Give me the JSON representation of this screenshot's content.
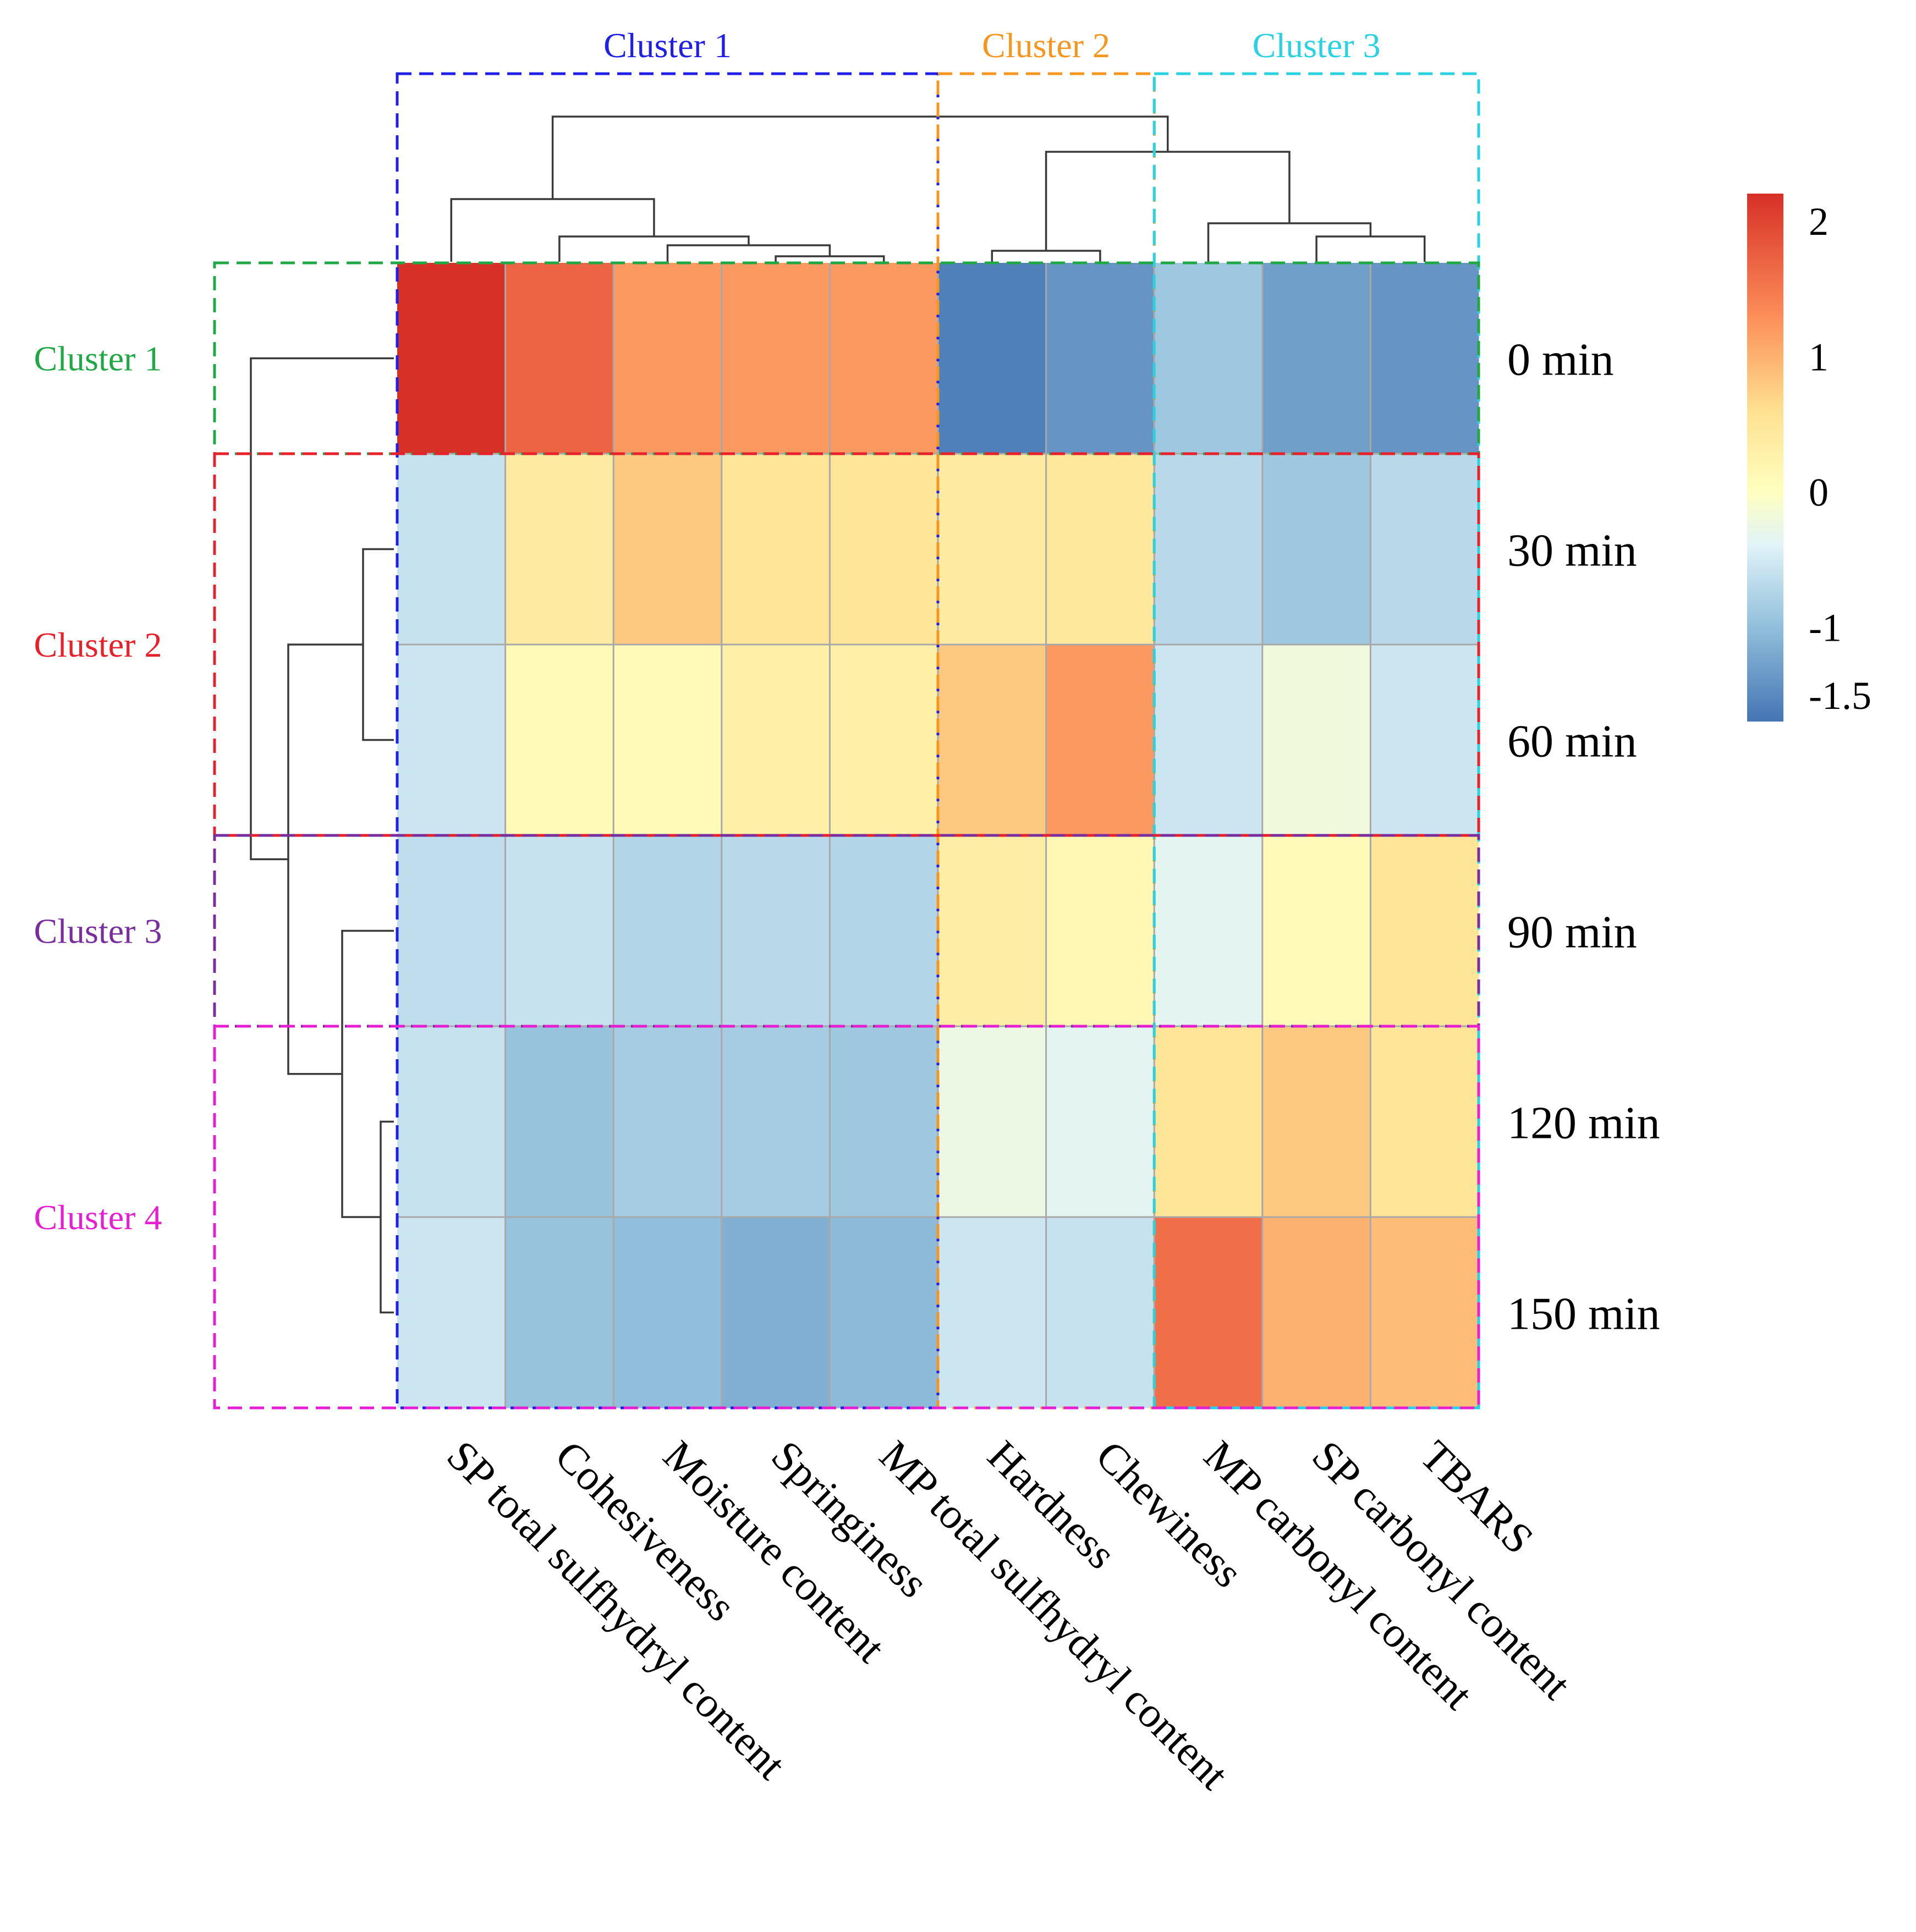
{
  "chart_data": {
    "type": "heatmap",
    "title": "",
    "rows": [
      "0 min",
      "30 min",
      "60 min",
      "90 min",
      "120 min",
      "150 min"
    ],
    "columns": [
      "SP total sulfhydryl content",
      "Cohesiveness",
      "Moisture content",
      "Springiness",
      "MP total sulfhydryl content",
      "Hardness",
      "Chewiness",
      "MP carbonyl content",
      "SP carbonyl content",
      "TBARS"
    ],
    "values": [
      [
        2.2,
        1.7,
        1.2,
        1.2,
        1.2,
        -1.6,
        -1.4,
        -0.9,
        -1.3,
        -1.4
      ],
      [
        -0.6,
        0.4,
        0.8,
        0.5,
        0.5,
        0.4,
        0.45,
        -0.7,
        -0.9,
        -0.7
      ],
      [
        -0.55,
        0.1,
        0.1,
        0.3,
        0.3,
        0.8,
        1.2,
        -0.55,
        -0.2,
        -0.55
      ],
      [
        -0.65,
        -0.6,
        -0.75,
        -0.7,
        -0.75,
        0.35,
        0.15,
        -0.35,
        0.1,
        0.5
      ],
      [
        -0.6,
        -0.95,
        -0.85,
        -0.85,
        -0.9,
        -0.25,
        -0.35,
        0.5,
        0.8,
        0.5
      ],
      [
        -0.55,
        -0.95,
        -1.0,
        -1.15,
        -1.05,
        -0.55,
        -0.6,
        1.6,
        1.0,
        0.9
      ]
    ],
    "color_scale": {
      "min": -1.7,
      "max": 2.2,
      "ticks": [
        {
          "label": "2",
          "value": 2
        },
        {
          "label": "1",
          "value": 1
        },
        {
          "label": "0",
          "value": 0
        },
        {
          "label": "-1",
          "value": -1
        },
        {
          "label": "-1.5",
          "value": -1.5
        }
      ],
      "stops": [
        {
          "value": -1.7,
          "color": "#4575b4"
        },
        {
          "value": -1.0,
          "color": "#91bfdb"
        },
        {
          "value": -0.4,
          "color": "#e0f3f8"
        },
        {
          "value": 0.0,
          "color": "#ffffbf"
        },
        {
          "value": 0.6,
          "color": "#fee090"
        },
        {
          "value": 1.3,
          "color": "#fc8d59"
        },
        {
          "value": 2.2,
          "color": "#d73027"
        }
      ]
    },
    "column_clusters": [
      {
        "label": "Cluster 1",
        "color": "#1f1fe6",
        "columns": [
          "SP total sulfhydryl content",
          "Cohesiveness",
          "Moisture content",
          "Springiness",
          "MP total sulfhydryl content"
        ]
      },
      {
        "label": "Cluster 2",
        "color": "#f5961e",
        "columns": [
          "Hardness",
          "Chewiness"
        ]
      },
      {
        "label": "Cluster 3",
        "color": "#29d2e0",
        "columns": [
          "MP carbonyl content",
          "SP carbonyl content",
          "TBARS"
        ]
      }
    ],
    "row_clusters": [
      {
        "label": "Cluster 1",
        "color": "#21a846",
        "rows": [
          "0 min"
        ]
      },
      {
        "label": "Cluster 2",
        "color": "#e8202a",
        "rows": [
          "30 min",
          "60 min"
        ]
      },
      {
        "label": "Cluster 3",
        "color": "#7a2e9e",
        "rows": [
          "90 min"
        ]
      },
      {
        "label": "Cluster 4",
        "color": "#e620d2",
        "rows": [
          "120 min",
          "150 min"
        ]
      }
    ]
  }
}
